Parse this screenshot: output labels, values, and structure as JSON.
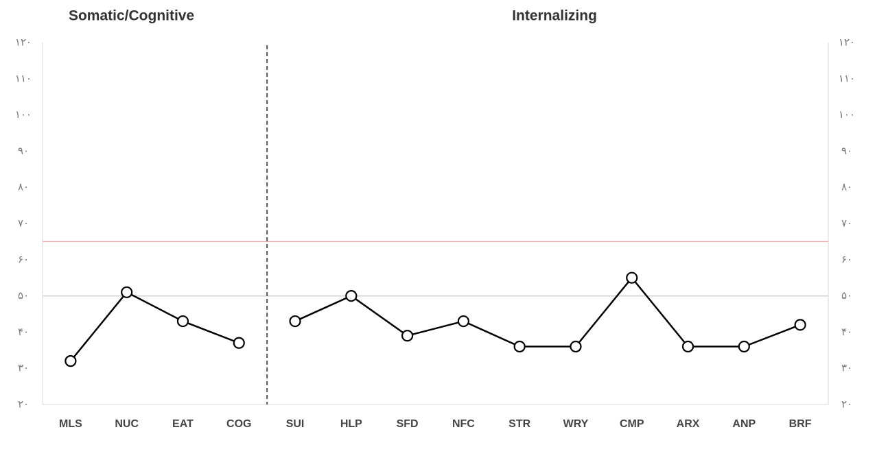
{
  "chart_data": {
    "type": "line",
    "groups": [
      {
        "title": "Somatic/Cognitive",
        "categories": [
          "MLS",
          "NUC",
          "EAT",
          "COG"
        ],
        "values": [
          32,
          51,
          43,
          37
        ]
      },
      {
        "title": "Internalizing",
        "categories": [
          "SUI",
          "HLP",
          "SFD",
          "NFC",
          "STR",
          "WRY",
          "CMP",
          "ARX",
          "ANP",
          "BRF"
        ],
        "values": [
          43,
          50,
          39,
          43,
          36,
          36,
          55,
          36,
          36,
          42
        ]
      }
    ],
    "color": "#000000",
    "ylim": [
      20,
      120
    ],
    "yticks": [
      {
        "value": 20,
        "label": "۲۰"
      },
      {
        "value": 30,
        "label": "۳۰"
      },
      {
        "value": 40,
        "label": "۴۰"
      },
      {
        "value": 50,
        "label": "۵۰"
      },
      {
        "value": 60,
        "label": "۶۰"
      },
      {
        "value": 70,
        "label": "۷۰"
      },
      {
        "value": 80,
        "label": "۸۰"
      },
      {
        "value": 90,
        "label": "۹۰"
      },
      {
        "value": 100,
        "label": "۱۰۰"
      },
      {
        "value": 110,
        "label": "۱۱۰"
      },
      {
        "value": 120,
        "label": "۱۲۰"
      }
    ],
    "reference_lines": [
      {
        "value": 50,
        "color": "#d9d9d9"
      },
      {
        "value": 65,
        "color": "#f4a6a6"
      }
    ]
  }
}
